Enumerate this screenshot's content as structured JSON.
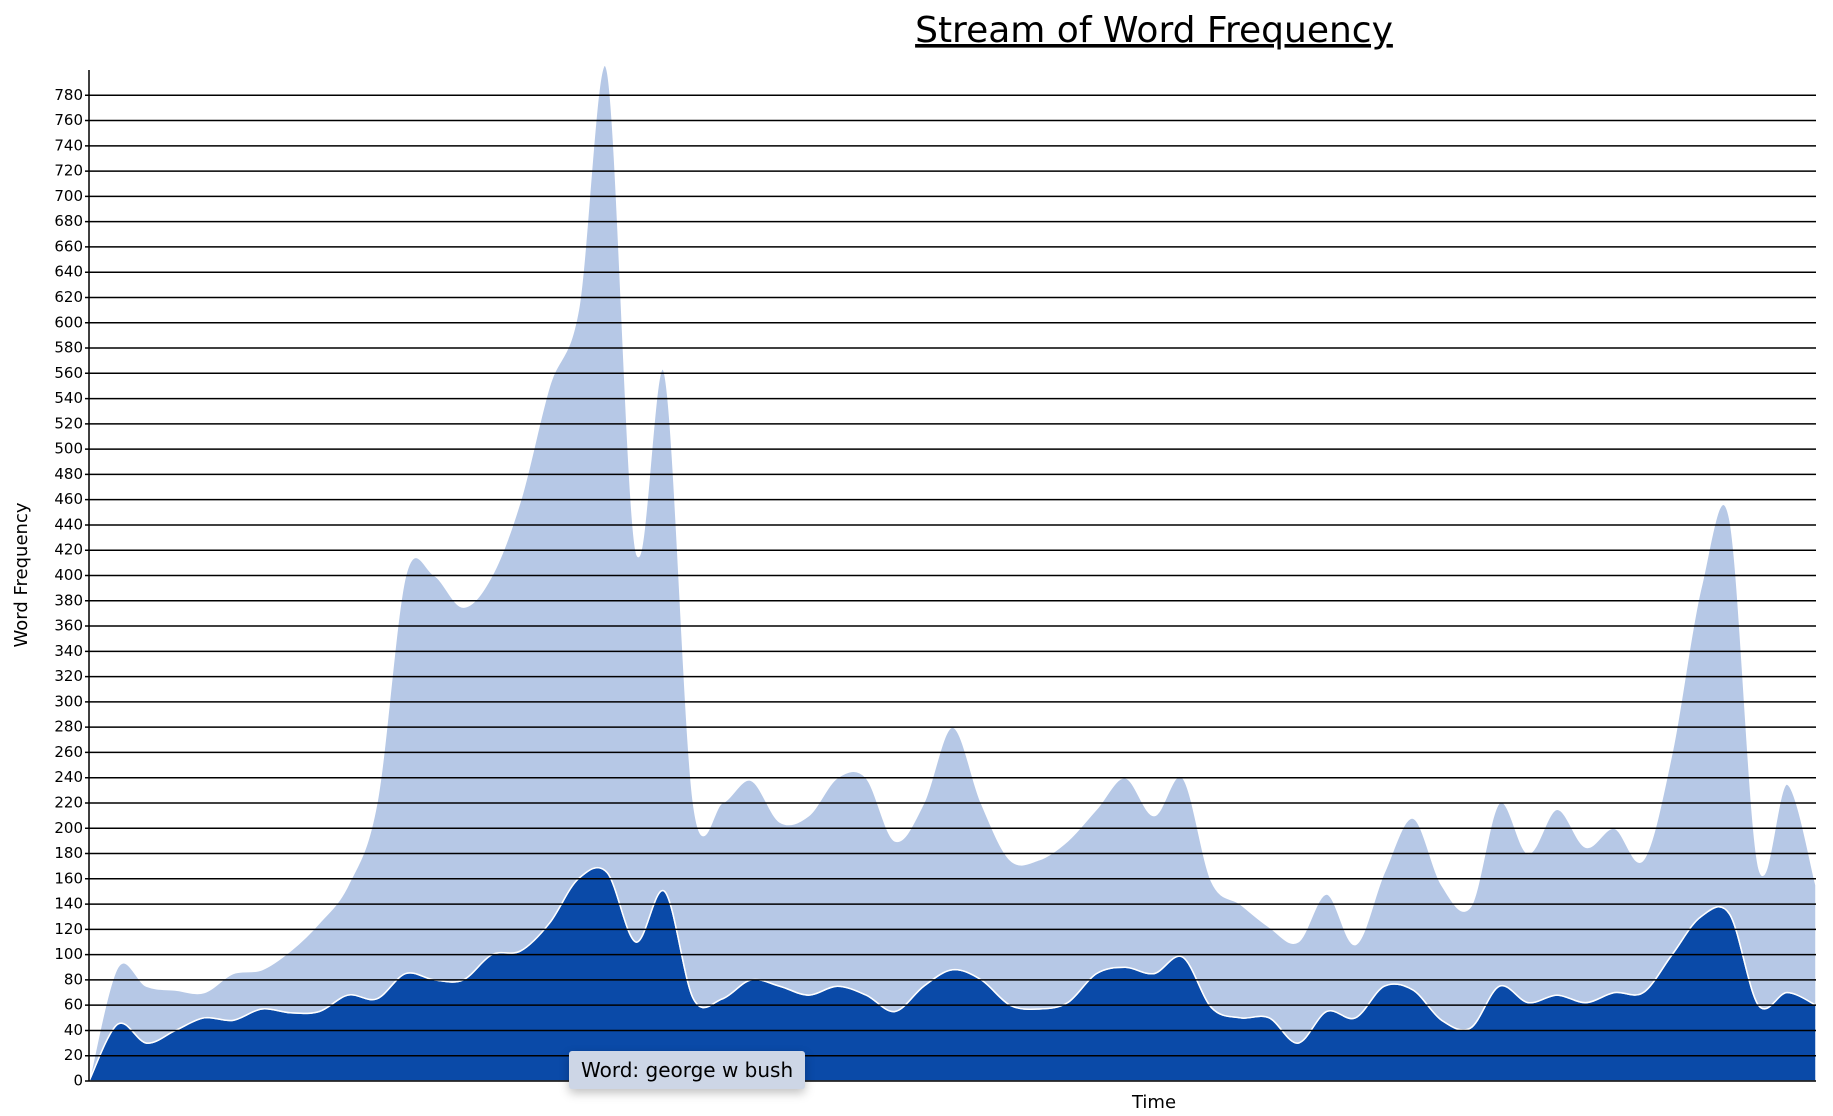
{
  "chart_data": {
    "type": "stacked_area",
    "title": "Stream of Word Frequency",
    "y_label": "Word Frequency",
    "x_label": "Time",
    "tooltip": "Word: george w bush",
    "ylim": [
      0,
      800
    ],
    "yticks": [
      0,
      20,
      40,
      60,
      80,
      100,
      120,
      140,
      160,
      180,
      200,
      220,
      240,
      260,
      280,
      300,
      320,
      340,
      360,
      380,
      400,
      420,
      440,
      460,
      480,
      500,
      520,
      540,
      560,
      580,
      600,
      620,
      640,
      660,
      680,
      700,
      720,
      740,
      760,
      780
    ],
    "grid": true,
    "series": [
      {
        "color": "#0a4aa8",
        "values": [
          0,
          45,
          30,
          40,
          50,
          48,
          57,
          54,
          55,
          68,
          65,
          85,
          80,
          80,
          100,
          103,
          125,
          160,
          165,
          110,
          150,
          65,
          65,
          80,
          75,
          68,
          75,
          68,
          55,
          75,
          88,
          80,
          60,
          57,
          62,
          85,
          90,
          85,
          98,
          58,
          50,
          50,
          30,
          55,
          50,
          75,
          72,
          48,
          42,
          75,
          62,
          68,
          62,
          70,
          70,
          100,
          130,
          132,
          60,
          70,
          60
        ]
      },
      {
        "color": "#b6c8e6",
        "values": [
          0,
          45,
          45,
          32,
          20,
          37,
          31,
          49,
          70,
          87,
          155,
          315,
          320,
          295,
          300,
          357,
          425,
          450,
          635,
          310,
          410,
          155,
          155,
          158,
          130,
          142,
          165,
          172,
          135,
          145,
          192,
          140,
          115,
          118,
          128,
          130,
          150,
          125,
          142,
          100,
          90,
          72,
          80,
          93,
          58,
          90,
          136,
          107,
          96,
          145,
          118,
          147,
          123,
          130,
          105,
          160,
          260,
          313,
          110,
          165,
          95
        ]
      }
    ]
  }
}
